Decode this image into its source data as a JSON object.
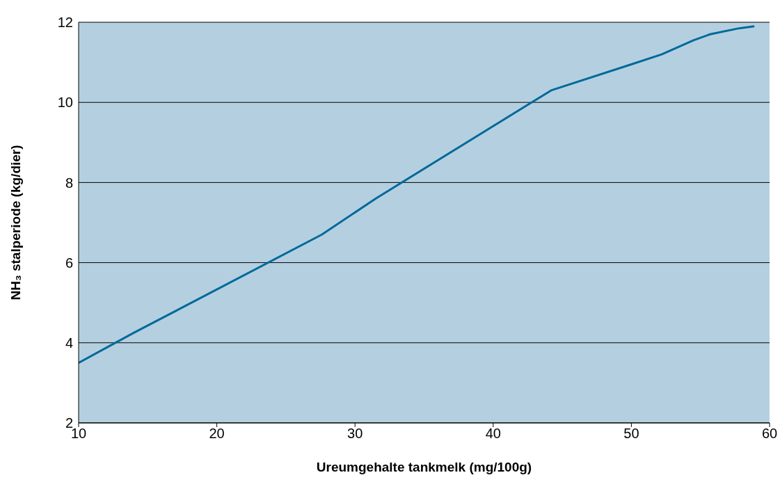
{
  "chart_data": {
    "type": "line",
    "xlabel": "Ureumgehalte tankmelk (mg/100g)",
    "ylabel": "NH₃ stalperiode (kg/dier)",
    "x": [
      10,
      14,
      27.6,
      31.5,
      44.2,
      50,
      52.2,
      54.5,
      55.7,
      57.8,
      58.9
    ],
    "series": [
      {
        "color": "#00699a",
        "values": [
          3.5,
          4.25,
          6.7,
          7.6,
          10.3,
          10.95,
          11.2,
          11.55,
          11.7,
          11.85,
          11.9
        ]
      }
    ],
    "xlim": [
      10,
      60
    ],
    "xticks": [
      10,
      20,
      30,
      40,
      50,
      60
    ],
    "ylim": [
      2,
      12
    ],
    "yticks": [
      2,
      4,
      6,
      8,
      10,
      12
    ],
    "grid": "y"
  }
}
